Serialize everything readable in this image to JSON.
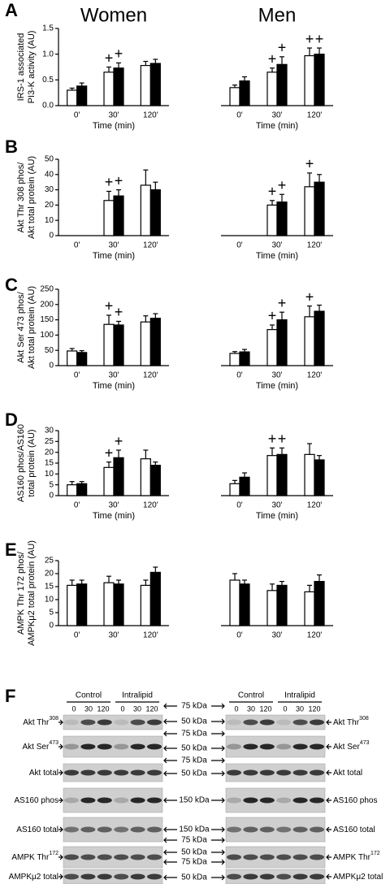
{
  "chart_data": [
    {
      "type": "bar",
      "panel": "A",
      "title": "Women",
      "ylabel": [
        "IRS-1 associated",
        "PI3-K activity (AU)"
      ],
      "xlabel": "Time (min)",
      "categories": [
        "0'",
        "30'",
        "120'"
      ],
      "ylim": [
        0,
        1.5
      ],
      "yticks": [
        {
          "value": 0,
          "label": "0.0"
        },
        0.5,
        {
          "value": 1,
          "label": "1.0"
        },
        1.5
      ],
      "series": [
        {
          "color": "#ffffff",
          "values": [
            0.3,
            0.65,
            0.78
          ],
          "errors": [
            0.04,
            0.1,
            0.08
          ],
          "annotations": [
            null,
            "+",
            null
          ]
        },
        {
          "color": "#000000",
          "values": [
            0.38,
            0.73,
            0.82
          ],
          "errors": [
            0.06,
            0.1,
            0.08
          ],
          "annotations": [
            null,
            "+",
            null
          ]
        }
      ]
    },
    {
      "type": "bar",
      "title": "Men",
      "xlabel": "Time (min)",
      "categories": [
        "0'",
        "30'",
        "120'"
      ],
      "ylim": [
        0,
        1.5
      ],
      "series": [
        {
          "color": "#ffffff",
          "values": [
            0.35,
            0.65,
            0.97
          ],
          "errors": [
            0.05,
            0.08,
            0.15
          ],
          "annotations": [
            null,
            "+",
            "+"
          ]
        },
        {
          "color": "#000000",
          "values": [
            0.48,
            0.8,
            1.0
          ],
          "errors": [
            0.08,
            0.15,
            0.12
          ],
          "annotations": [
            null,
            "+",
            "+"
          ]
        }
      ]
    },
    {
      "type": "bar",
      "panel": "B",
      "ylabel": [
        "Akt Thr 308 phos/",
        "Akt total protein (AU)"
      ],
      "xlabel": "Time (min)",
      "categories": [
        "0'",
        "30'",
        "120'"
      ],
      "ylim": [
        0,
        50
      ],
      "yticks": [
        0,
        10,
        20,
        30,
        40,
        50
      ],
      "series": [
        {
          "color": "#ffffff",
          "values": [
            null,
            23,
            33
          ],
          "errors": [
            null,
            6,
            10
          ],
          "annotations": [
            null,
            "+",
            null
          ]
        },
        {
          "color": "#000000",
          "values": [
            null,
            26,
            30
          ],
          "errors": [
            null,
            4,
            5
          ],
          "annotations": [
            null,
            "+",
            null
          ]
        }
      ]
    },
    {
      "type": "bar",
      "xlabel": "Time (min)",
      "categories": [
        "0'",
        "30'",
        "120'"
      ],
      "ylim": [
        0,
        50
      ],
      "series": [
        {
          "color": "#ffffff",
          "values": [
            null,
            20,
            32
          ],
          "errors": [
            null,
            3,
            9
          ],
          "annotations": [
            null,
            "+",
            "+"
          ]
        },
        {
          "color": "#000000",
          "values": [
            null,
            22,
            35
          ],
          "errors": [
            null,
            5,
            5
          ],
          "annotations": [
            null,
            "+",
            null
          ]
        }
      ]
    },
    {
      "type": "bar",
      "panel": "C",
      "ylabel": [
        "Akt Ser 473 phos/",
        "Akt total protein (AU)"
      ],
      "xlabel": "Time (min)",
      "categories": [
        "0'",
        "30'",
        "120'"
      ],
      "ylim": [
        0,
        250
      ],
      "yticks": [
        0,
        50,
        100,
        150,
        200,
        250
      ],
      "series": [
        {
          "color": "#ffffff",
          "values": [
            48,
            135,
            143
          ],
          "errors": [
            8,
            30,
            20
          ],
          "annotations": [
            null,
            "+",
            null
          ]
        },
        {
          "color": "#000000",
          "values": [
            43,
            133,
            155
          ],
          "errors": [
            6,
            12,
            15
          ],
          "annotations": [
            null,
            "+",
            null
          ]
        }
      ]
    },
    {
      "type": "bar",
      "xlabel": "Time (min)",
      "categories": [
        "0'",
        "30'",
        "120'"
      ],
      "ylim": [
        0,
        250
      ],
      "series": [
        {
          "color": "#ffffff",
          "values": [
            40,
            118,
            160
          ],
          "errors": [
            6,
            15,
            35
          ],
          "annotations": [
            null,
            "+",
            "+"
          ]
        },
        {
          "color": "#000000",
          "values": [
            45,
            150,
            178
          ],
          "errors": [
            8,
            25,
            20
          ],
          "annotations": [
            null,
            "+",
            null
          ]
        }
      ]
    },
    {
      "type": "bar",
      "panel": "D",
      "ylabel": [
        "AS160 phos/AS160",
        "total protein (AU)"
      ],
      "xlabel": "Time (min)",
      "categories": [
        "0'",
        "30'",
        "120'"
      ],
      "ylim": [
        0,
        30
      ],
      "yticks": [
        0,
        5,
        10,
        15,
        20,
        25,
        30
      ],
      "series": [
        {
          "color": "#ffffff",
          "values": [
            5,
            13,
            17
          ],
          "errors": [
            1.5,
            2.5,
            4
          ],
          "annotations": [
            null,
            "+",
            null
          ]
        },
        {
          "color": "#000000",
          "values": [
            5.5,
            17.5,
            14
          ],
          "errors": [
            1,
            3.5,
            1.5
          ],
          "annotations": [
            null,
            "+",
            null
          ]
        }
      ]
    },
    {
      "type": "bar",
      "xlabel": "Time (min)",
      "categories": [
        "0'",
        "30'",
        "120'"
      ],
      "ylim": [
        0,
        30
      ],
      "series": [
        {
          "color": "#ffffff",
          "values": [
            5.5,
            18.5,
            19
          ],
          "errors": [
            1.5,
            3.5,
            5
          ],
          "annotations": [
            null,
            "+",
            null
          ]
        },
        {
          "color": "#000000",
          "values": [
            8.5,
            19,
            16.5
          ],
          "errors": [
            2,
            3,
            2
          ],
          "annotations": [
            null,
            "+",
            null
          ]
        }
      ]
    },
    {
      "type": "bar",
      "panel": "E",
      "ylabel": [
        "AMPK Thr 172 phos/",
        "AMPKμ2 total protein (AU)"
      ],
      "categories": [
        "0'",
        "30'",
        "120'"
      ],
      "ylim": [
        0,
        25
      ],
      "yticks": [
        0,
        5,
        10,
        15,
        20,
        25
      ],
      "series": [
        {
          "color": "#ffffff",
          "values": [
            15.5,
            16.5,
            15.5
          ],
          "errors": [
            2,
            2.5,
            2
          ]
        },
        {
          "color": "#000000",
          "values": [
            16,
            16,
            20.5
          ],
          "errors": [
            1.5,
            1.5,
            2
          ]
        }
      ]
    },
    {
      "type": "bar",
      "categories": [
        "0'",
        "30'",
        "120'"
      ],
      "ylim": [
        0,
        25
      ],
      "series": [
        {
          "color": "#ffffff",
          "values": [
            17.5,
            13.5,
            13
          ],
          "errors": [
            2.5,
            2.5,
            2.5
          ]
        },
        {
          "color": "#000000",
          "values": [
            16,
            15.5,
            17
          ],
          "errors": [
            1.5,
            1.5,
            2.5
          ]
        }
      ]
    }
  ],
  "blot": {
    "panel": "F",
    "groups": [
      "Control",
      "Intralipid"
    ],
    "lanes": [
      "0",
      "30",
      "120"
    ],
    "markers": [
      "75 kDa",
      "50 kDa",
      "75 kDa",
      "50 kDa",
      "75 kDa",
      "50 kDa",
      "150 kDa",
      "150 kDa",
      "75 kDa",
      "50 kDa",
      "75 kDa",
      "50 kDa"
    ],
    "rows": [
      {
        "label": "Akt Thr",
        "sup": "308"
      },
      {
        "label": "Akt Ser",
        "sup": "473"
      },
      {
        "label": "Akt total"
      },
      {
        "label": "AS160 phos"
      },
      {
        "label": "AS160 total"
      },
      {
        "label": "AMPK Thr",
        "sup": "172"
      },
      {
        "label": "AMPKμ2 total"
      }
    ]
  }
}
